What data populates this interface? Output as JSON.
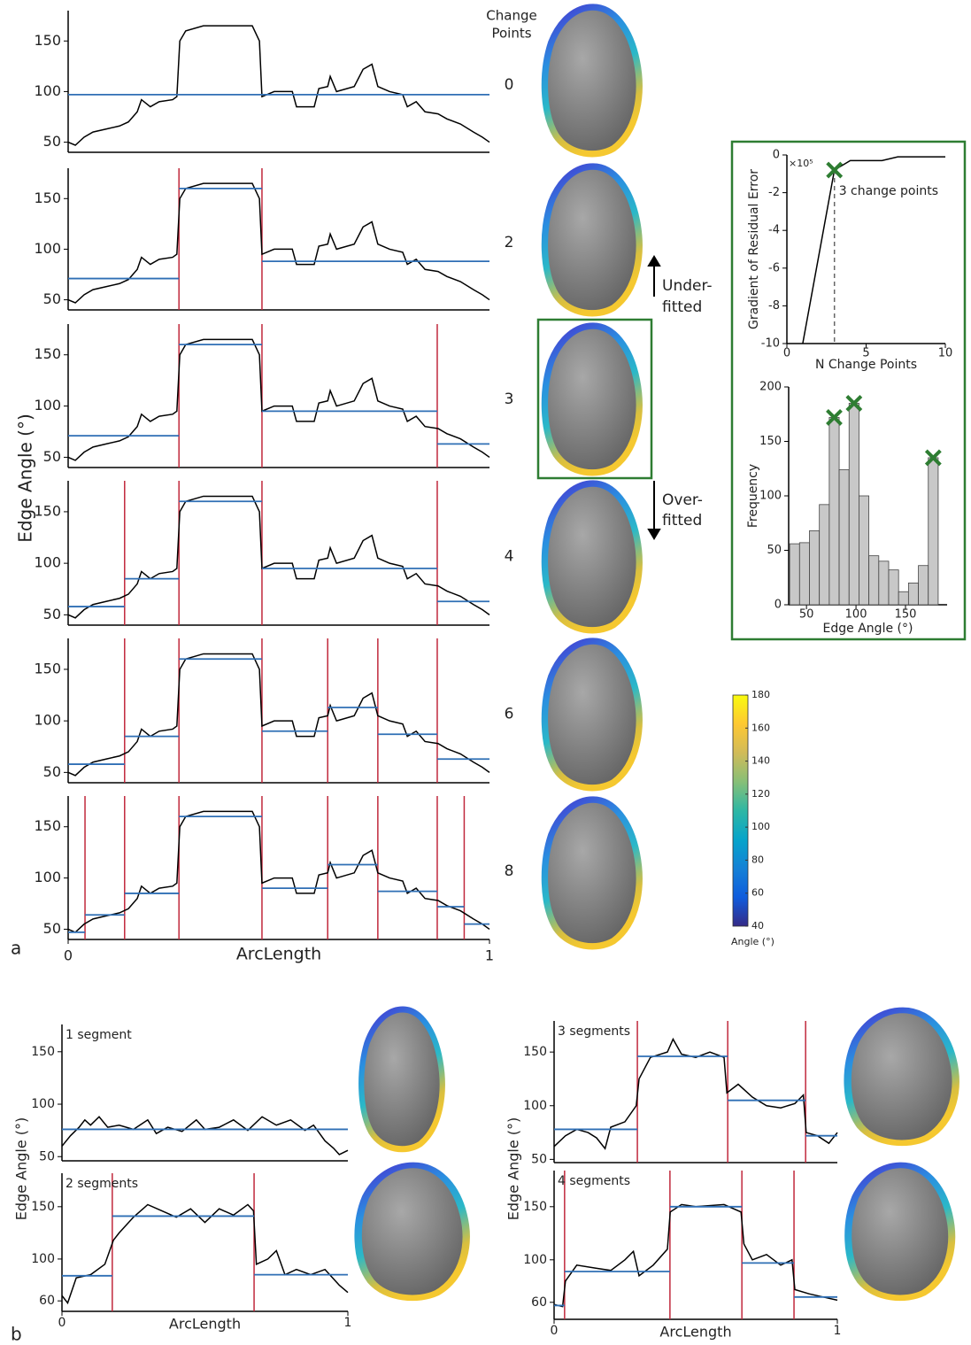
{
  "figure": {
    "panel_a": "a",
    "panel_b": "b",
    "edge_angle_label": "Edge Angle (°)",
    "change_points_header": [
      "Change",
      "Points"
    ],
    "under_fitted": [
      "Under-",
      "fitted"
    ],
    "over_fitted": [
      "Over-",
      "fitted"
    ]
  },
  "chart_data": [
    {
      "type": "line",
      "label": "0",
      "color": "#000000",
      "fit_color": "#2f6fb5",
      "changepoint_color": "#c0283c",
      "xlim": [
        0,
        1
      ],
      "ylim": [
        40,
        180
      ],
      "yticks": [
        50,
        100,
        150
      ],
      "x": [
        0,
        0.017,
        0.038,
        0.059,
        0.09,
        0.122,
        0.143,
        0.164,
        0.174,
        0.195,
        0.216,
        0.248,
        0.258,
        0.265,
        0.279,
        0.321,
        0.384,
        0.437,
        0.454,
        0.46,
        0.489,
        0.532,
        0.542,
        0.584,
        0.595,
        0.616,
        0.622,
        0.637,
        0.679,
        0.7,
        0.721,
        0.735,
        0.763,
        0.794,
        0.805,
        0.826,
        0.847,
        0.878,
        0.899,
        0.931,
        0.962,
        0.983,
        1
      ],
      "values": [
        50,
        47,
        55,
        60,
        63,
        66,
        70,
        80,
        92,
        85,
        90,
        92,
        95,
        150,
        160,
        165,
        165,
        165,
        150,
        95,
        100,
        100,
        85,
        85,
        103,
        105,
        115,
        100,
        105,
        122,
        127,
        105,
        100,
        97,
        85,
        90,
        80,
        78,
        73,
        68,
        60,
        55,
        50
      ],
      "changepoints": [],
      "segment_means": [
        97
      ]
    },
    {
      "type": "line",
      "label": "2",
      "color": "#000000",
      "fit_color": "#2f6fb5",
      "changepoint_color": "#c0283c",
      "xlim": [
        0,
        1
      ],
      "ylim": [
        40,
        180
      ],
      "yticks": [
        50,
        100,
        150
      ],
      "x": [
        0,
        0.017,
        0.038,
        0.059,
        0.09,
        0.122,
        0.143,
        0.164,
        0.174,
        0.195,
        0.216,
        0.248,
        0.258,
        0.265,
        0.279,
        0.321,
        0.384,
        0.437,
        0.454,
        0.46,
        0.489,
        0.532,
        0.542,
        0.584,
        0.595,
        0.616,
        0.622,
        0.637,
        0.679,
        0.7,
        0.721,
        0.735,
        0.763,
        0.794,
        0.805,
        0.826,
        0.847,
        0.878,
        0.899,
        0.931,
        0.962,
        0.983,
        1
      ],
      "values": [
        50,
        47,
        55,
        60,
        63,
        66,
        70,
        80,
        92,
        85,
        90,
        92,
        95,
        150,
        160,
        165,
        165,
        165,
        150,
        95,
        100,
        100,
        85,
        85,
        103,
        105,
        115,
        100,
        105,
        122,
        127,
        105,
        100,
        97,
        85,
        90,
        80,
        78,
        73,
        68,
        60,
        55,
        50
      ],
      "changepoints": [
        0.263,
        0.46
      ],
      "segment_means": [
        71,
        160,
        88
      ]
    },
    {
      "type": "line",
      "label": "3",
      "color": "#000000",
      "fit_color": "#2f6fb5",
      "changepoint_color": "#c0283c",
      "xlim": [
        0,
        1
      ],
      "ylim": [
        40,
        180
      ],
      "yticks": [
        50,
        100,
        150
      ],
      "x": [
        0,
        0.017,
        0.038,
        0.059,
        0.09,
        0.122,
        0.143,
        0.164,
        0.174,
        0.195,
        0.216,
        0.248,
        0.258,
        0.265,
        0.279,
        0.321,
        0.384,
        0.437,
        0.454,
        0.46,
        0.489,
        0.532,
        0.542,
        0.584,
        0.595,
        0.616,
        0.622,
        0.637,
        0.679,
        0.7,
        0.721,
        0.735,
        0.763,
        0.794,
        0.805,
        0.826,
        0.847,
        0.878,
        0.899,
        0.931,
        0.962,
        0.983,
        1
      ],
      "values": [
        50,
        47,
        55,
        60,
        63,
        66,
        70,
        80,
        92,
        85,
        90,
        92,
        95,
        150,
        160,
        165,
        165,
        165,
        150,
        95,
        100,
        100,
        85,
        85,
        103,
        105,
        115,
        100,
        105,
        122,
        127,
        105,
        100,
        97,
        85,
        90,
        80,
        78,
        73,
        68,
        60,
        55,
        50
      ],
      "changepoints": [
        0.263,
        0.46,
        0.876
      ],
      "segment_means": [
        71,
        160,
        95,
        63
      ]
    },
    {
      "type": "line",
      "label": "4",
      "color": "#000000",
      "fit_color": "#2f6fb5",
      "changepoint_color": "#c0283c",
      "xlim": [
        0,
        1
      ],
      "ylim": [
        40,
        180
      ],
      "yticks": [
        50,
        100,
        150
      ],
      "x": [
        0,
        0.017,
        0.038,
        0.059,
        0.09,
        0.122,
        0.143,
        0.164,
        0.174,
        0.195,
        0.216,
        0.248,
        0.258,
        0.265,
        0.279,
        0.321,
        0.384,
        0.437,
        0.454,
        0.46,
        0.489,
        0.532,
        0.542,
        0.584,
        0.595,
        0.616,
        0.622,
        0.637,
        0.679,
        0.7,
        0.721,
        0.735,
        0.763,
        0.794,
        0.805,
        0.826,
        0.847,
        0.878,
        0.899,
        0.931,
        0.962,
        0.983,
        1
      ],
      "values": [
        50,
        47,
        55,
        60,
        63,
        66,
        70,
        80,
        92,
        85,
        90,
        92,
        95,
        150,
        160,
        165,
        165,
        165,
        150,
        95,
        100,
        100,
        85,
        85,
        103,
        105,
        115,
        100,
        105,
        122,
        127,
        105,
        100,
        97,
        85,
        90,
        80,
        78,
        73,
        68,
        60,
        55,
        50
      ],
      "changepoints": [
        0.134,
        0.263,
        0.46,
        0.876
      ],
      "segment_means": [
        58,
        85,
        160,
        95,
        63
      ]
    },
    {
      "type": "line",
      "label": "6",
      "color": "#000000",
      "fit_color": "#2f6fb5",
      "changepoint_color": "#c0283c",
      "xlim": [
        0,
        1
      ],
      "ylim": [
        40,
        180
      ],
      "yticks": [
        50,
        100,
        150
      ],
      "x": [
        0,
        0.017,
        0.038,
        0.059,
        0.09,
        0.122,
        0.143,
        0.164,
        0.174,
        0.195,
        0.216,
        0.248,
        0.258,
        0.265,
        0.279,
        0.321,
        0.384,
        0.437,
        0.454,
        0.46,
        0.489,
        0.532,
        0.542,
        0.584,
        0.595,
        0.616,
        0.622,
        0.637,
        0.679,
        0.7,
        0.721,
        0.735,
        0.763,
        0.794,
        0.805,
        0.826,
        0.847,
        0.878,
        0.899,
        0.931,
        0.962,
        0.983,
        1
      ],
      "values": [
        50,
        47,
        55,
        60,
        63,
        66,
        70,
        80,
        92,
        85,
        90,
        92,
        95,
        150,
        160,
        165,
        165,
        165,
        150,
        95,
        100,
        100,
        85,
        85,
        103,
        105,
        115,
        100,
        105,
        122,
        127,
        105,
        100,
        97,
        85,
        90,
        80,
        78,
        73,
        68,
        60,
        55,
        50
      ],
      "changepoints": [
        0.134,
        0.263,
        0.46,
        0.616,
        0.735,
        0.876
      ],
      "segment_means": [
        58,
        85,
        160,
        90,
        113,
        87,
        63
      ]
    },
    {
      "type": "line",
      "label": "8",
      "color": "#000000",
      "fit_color": "#2f6fb5",
      "changepoint_color": "#c0283c",
      "xlim": [
        0,
        1
      ],
      "xticks": [
        0,
        1
      ],
      "xlabel": "ArcLength",
      "ylim": [
        40,
        180
      ],
      "yticks": [
        50,
        100,
        150
      ],
      "x": [
        0,
        0.017,
        0.038,
        0.059,
        0.09,
        0.122,
        0.143,
        0.164,
        0.174,
        0.195,
        0.216,
        0.248,
        0.258,
        0.265,
        0.279,
        0.321,
        0.384,
        0.437,
        0.454,
        0.46,
        0.489,
        0.532,
        0.542,
        0.584,
        0.595,
        0.616,
        0.622,
        0.637,
        0.679,
        0.7,
        0.721,
        0.735,
        0.763,
        0.794,
        0.805,
        0.826,
        0.847,
        0.878,
        0.899,
        0.931,
        0.962,
        0.983,
        1
      ],
      "values": [
        50,
        47,
        55,
        60,
        63,
        66,
        70,
        80,
        92,
        85,
        90,
        92,
        95,
        150,
        160,
        165,
        165,
        165,
        150,
        95,
        100,
        100,
        85,
        85,
        103,
        105,
        115,
        100,
        105,
        122,
        127,
        105,
        100,
        97,
        85,
        90,
        80,
        78,
        73,
        68,
        60,
        55,
        50
      ],
      "changepoints": [
        0.04,
        0.134,
        0.263,
        0.46,
        0.616,
        0.735,
        0.876,
        0.94
      ],
      "segment_means": [
        47,
        64,
        85,
        160,
        90,
        113,
        87,
        72,
        55
      ]
    },
    {
      "type": "line",
      "color": "#000000",
      "xlim": [
        0,
        10
      ],
      "xticks": [
        0,
        5,
        10
      ],
      "ylim": [
        -10,
        0
      ],
      "yticks": [
        0,
        -2,
        -4,
        -6,
        -8,
        -10
      ],
      "xlabel": "N Change Points",
      "ylabel": "Gradient of Residual Error",
      "scale_label": "×10⁵",
      "annotation": "3 change points",
      "marker_color": "#2e7d32",
      "threshold_x": 3,
      "x": [
        1,
        3,
        4,
        5,
        6,
        7,
        8,
        9,
        10
      ],
      "values": [
        -10,
        -0.8,
        -0.3,
        -0.3,
        -0.3,
        -0.1,
        -0.1,
        -0.1,
        -0.1
      ]
    },
    {
      "type": "histogram",
      "color": "#c8c8c8",
      "xlim": [
        32,
        192
      ],
      "xticks": [
        50,
        100,
        150
      ],
      "ylim": [
        0,
        200
      ],
      "yticks": [
        0,
        50,
        100,
        150,
        200
      ],
      "xlabel": "Edge Angle (°)",
      "ylabel": "Frequency",
      "marker_color": "#2e7d32",
      "bins": [
        33,
        43,
        53,
        63,
        73,
        83,
        93,
        103,
        113,
        123,
        133,
        143,
        153,
        163,
        173,
        183
      ],
      "values": [
        56,
        57,
        68,
        92,
        172,
        124,
        185,
        100,
        45,
        40,
        32,
        12,
        20,
        36,
        135
      ],
      "peaks": {
        "x": [
          78,
          98,
          178
        ],
        "y": [
          172,
          185,
          135
        ]
      }
    },
    {
      "type": "colorbar",
      "clim": [
        40,
        180
      ],
      "ticks": [
        40,
        60,
        80,
        100,
        120,
        140,
        160,
        180
      ],
      "label": "Angle (°)",
      "colors": [
        "#352a87",
        "#0f5cdd",
        "#1481d6",
        "#06a4ca",
        "#2eb7a4",
        "#87bf77",
        "#d1bb59",
        "#fec832",
        "#f9fb0e"
      ]
    },
    {
      "type": "line",
      "title": "1 segment",
      "ylabel": "Edge Angle (°)",
      "color": "#000000",
      "fit_color": "#2f6fb5",
      "changepoint_color": "#c0283c",
      "xlim": [
        0,
        1
      ],
      "ylim": [
        46,
        176
      ],
      "yticks": [
        50,
        100,
        150
      ],
      "x": [
        0,
        0.03,
        0.06,
        0.08,
        0.1,
        0.13,
        0.16,
        0.2,
        0.25,
        0.3,
        0.33,
        0.37,
        0.42,
        0.47,
        0.5,
        0.55,
        0.6,
        0.65,
        0.7,
        0.75,
        0.8,
        0.85,
        0.88,
        0.92,
        0.95,
        0.97,
        1
      ],
      "values": [
        60,
        70,
        78,
        85,
        80,
        88,
        78,
        80,
        76,
        85,
        72,
        78,
        74,
        85,
        76,
        78,
        85,
        75,
        88,
        80,
        85,
        75,
        80,
        65,
        58,
        52,
        56
      ],
      "changepoints": [],
      "segment_means": [
        76
      ]
    },
    {
      "type": "line",
      "title": "2 segments",
      "xlabel": "ArcLength",
      "color": "#000000",
      "fit_color": "#2f6fb5",
      "changepoint_color": "#c0283c",
      "xlim": [
        0,
        1
      ],
      "xticks": [
        0,
        1
      ],
      "ylim": [
        50,
        182
      ],
      "yticks": [
        60,
        100,
        150
      ],
      "x": [
        0,
        0.02,
        0.05,
        0.1,
        0.15,
        0.18,
        0.2,
        0.25,
        0.3,
        0.35,
        0.4,
        0.45,
        0.5,
        0.55,
        0.6,
        0.65,
        0.67,
        0.68,
        0.72,
        0.75,
        0.78,
        0.82,
        0.87,
        0.92,
        0.97,
        1
      ],
      "values": [
        65,
        58,
        82,
        85,
        95,
        118,
        125,
        140,
        152,
        146,
        140,
        148,
        135,
        148,
        142,
        152,
        146,
        95,
        100,
        108,
        85,
        90,
        85,
        90,
        75,
        68
      ],
      "changepoints": [
        0.176,
        0.672
      ],
      "segment_means": [
        84,
        141,
        85
      ]
    },
    {
      "type": "line",
      "title": "3 segments",
      "ylabel": "Edge Angle (°)",
      "color": "#000000",
      "fit_color": "#2f6fb5",
      "changepoint_color": "#c0283c",
      "xlim": [
        0,
        1
      ],
      "ylim": [
        47,
        179
      ],
      "yticks": [
        50,
        100,
        150
      ],
      "x": [
        0,
        0.04,
        0.08,
        0.12,
        0.15,
        0.18,
        0.2,
        0.25,
        0.29,
        0.3,
        0.34,
        0.4,
        0.42,
        0.45,
        0.5,
        0.55,
        0.6,
        0.61,
        0.65,
        0.7,
        0.75,
        0.8,
        0.85,
        0.88,
        0.89,
        0.93,
        0.97,
        1
      ],
      "values": [
        62,
        72,
        78,
        75,
        70,
        60,
        80,
        85,
        100,
        125,
        145,
        150,
        162,
        148,
        145,
        150,
        145,
        112,
        120,
        108,
        100,
        98,
        102,
        110,
        75,
        72,
        65,
        75
      ],
      "changepoints": [
        0.294,
        0.613,
        0.888
      ],
      "segment_means": [
        78,
        146,
        105,
        72
      ]
    },
    {
      "type": "line",
      "title": "4 segments",
      "xlabel": "ArcLength",
      "color": "#000000",
      "fit_color": "#2f6fb5",
      "changepoint_color": "#c0283c",
      "xlim": [
        0,
        1
      ],
      "xticks": [
        0,
        1
      ],
      "ylim": [
        44,
        184
      ],
      "yticks": [
        60,
        100,
        150
      ],
      "x": [
        0,
        0.03,
        0.04,
        0.08,
        0.15,
        0.2,
        0.25,
        0.28,
        0.3,
        0.35,
        0.4,
        0.41,
        0.45,
        0.5,
        0.6,
        0.66,
        0.67,
        0.7,
        0.75,
        0.8,
        0.84,
        0.85,
        0.9,
        0.95,
        1
      ],
      "values": [
        58,
        56,
        80,
        95,
        92,
        90,
        100,
        108,
        85,
        95,
        110,
        145,
        152,
        150,
        152,
        145,
        115,
        100,
        105,
        95,
        100,
        72,
        68,
        65,
        62
      ],
      "changepoints": [
        0.037,
        0.409,
        0.663,
        0.847
      ],
      "segment_means": [
        57,
        89,
        150,
        97,
        65
      ]
    }
  ]
}
